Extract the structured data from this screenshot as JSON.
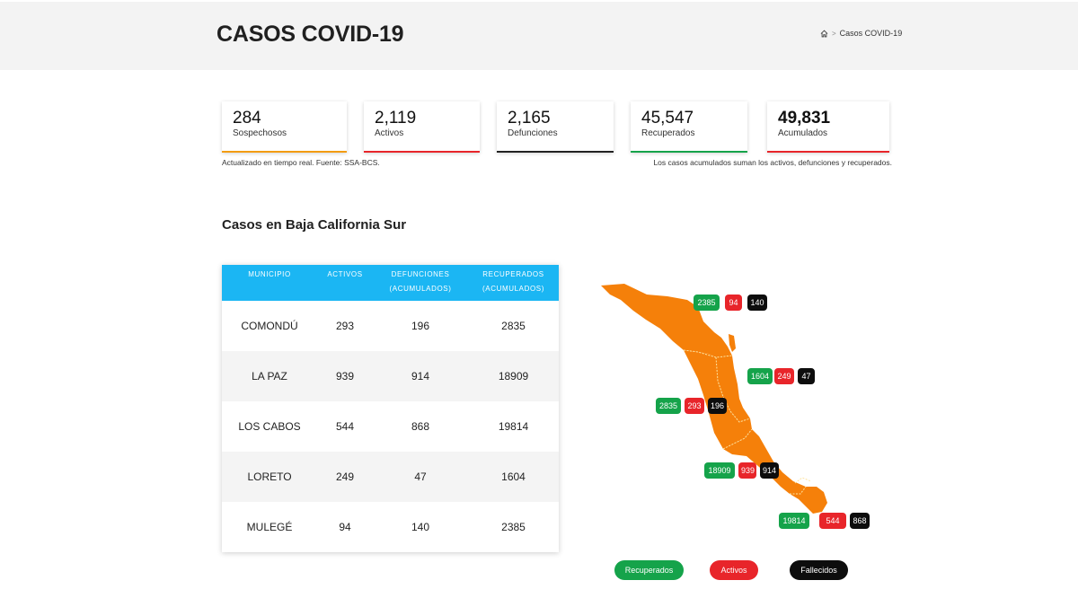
{
  "header": {
    "title": "CASOS COVID-19",
    "breadcrumb": {
      "icon": "home-icon",
      "separator": ">",
      "current": "Casos COVID-19"
    }
  },
  "stats": [
    {
      "value": "284",
      "label": "Sospechosos",
      "color": "#f39c12"
    },
    {
      "value": "2,119",
      "label": "Activos",
      "color": "#e8252a"
    },
    {
      "value": "2,165",
      "label": "Defunciones",
      "color": "#222222"
    },
    {
      "value": "45,547",
      "label": "Recuperados",
      "color": "#15a34a"
    },
    {
      "value": "49,831",
      "label": "Acumulados",
      "color": "#e8252a"
    }
  ],
  "notes": {
    "left": "Actualizado en tiempo real. Fuente: SSA-BCS.",
    "right": "Los casos acumulados suman los activos, defunciones y recuperados."
  },
  "section_title": "Casos en Baja California Sur",
  "table": {
    "header_color": "#1bb6f3",
    "columns": [
      {
        "line1": "MUNICIPIO",
        "line2": ""
      },
      {
        "line1": "ACTIVOS",
        "line2": ""
      },
      {
        "line1": "DEFUNCIONES",
        "line2": "(ACUMULADOS)"
      },
      {
        "line1": "RECUPERADOS",
        "line2": "(ACUMULADOS)"
      }
    ],
    "rows": [
      {
        "municipio": "COMONDÚ",
        "activos": "293",
        "defunciones": "196",
        "recuperados": "2835"
      },
      {
        "municipio": "LA PAZ",
        "activos": "939",
        "defunciones": "914",
        "recuperados": "18909"
      },
      {
        "municipio": "LOS CABOS",
        "activos": "544",
        "defunciones": "868",
        "recuperados": "19814"
      },
      {
        "municipio": "LORETO",
        "activos": "249",
        "defunciones": "47",
        "recuperados": "1604"
      },
      {
        "municipio": "MULEGÉ",
        "activos": "94",
        "defunciones": "140",
        "recuperados": "2385"
      }
    ]
  },
  "map": {
    "fill_color": "#f5800a",
    "badges": [
      {
        "municipio": "MULEGÉ",
        "recuperados": "2385",
        "activos": "94",
        "fallecidos": "140"
      },
      {
        "municipio": "LORETO",
        "recuperados": "1604",
        "activos": "249",
        "fallecidos": "47"
      },
      {
        "municipio": "COMONDÚ",
        "recuperados": "2835",
        "activos": "293",
        "fallecidos": "196"
      },
      {
        "municipio": "LA PAZ",
        "recuperados": "18909",
        "activos": "939",
        "fallecidos": "914"
      },
      {
        "municipio": "LOS CABOS",
        "recuperados": "19814",
        "activos": "544",
        "fallecidos": "868"
      }
    ]
  },
  "legend": [
    {
      "label": "Recuperados",
      "color": "#15a34a"
    },
    {
      "label": "Activos",
      "color": "#e8252a"
    },
    {
      "label": "Fallecidos",
      "color": "#0d0d0d"
    }
  ]
}
